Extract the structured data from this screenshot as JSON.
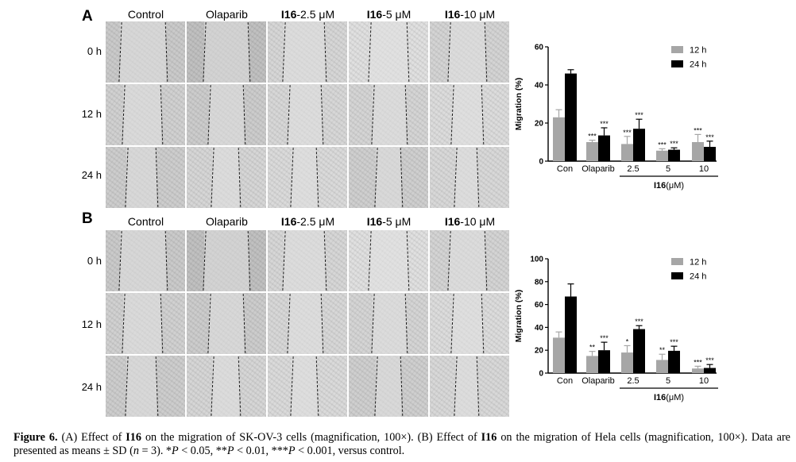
{
  "figure": {
    "panels": [
      {
        "letter": "A",
        "columns": [
          {
            "bold": "",
            "rest": "Control"
          },
          {
            "bold": "",
            "rest": "Olaparib"
          },
          {
            "bold": "I16",
            "rest": "-2.5 μM"
          },
          {
            "bold": "I16",
            "rest": "-5 μM"
          },
          {
            "bold": "I16",
            "rest": "-10 μM"
          }
        ],
        "rows": [
          "0 h",
          "12 h",
          "24 h"
        ]
      },
      {
        "letter": "B",
        "columns": [
          {
            "bold": "",
            "rest": "Control"
          },
          {
            "bold": "",
            "rest": "Olaparib"
          },
          {
            "bold": "I16",
            "rest": "-2.5 μM"
          },
          {
            "bold": "I16",
            "rest": "-5 μM"
          },
          {
            "bold": "I16",
            "rest": "-10 μM"
          }
        ],
        "rows": [
          "0 h",
          "12 h",
          "24 h"
        ]
      }
    ]
  },
  "chart_data": [
    {
      "type": "bar",
      "ylabel": "Migration (%)",
      "ylim": [
        0,
        60
      ],
      "yticks": [
        0,
        20,
        40,
        60
      ],
      "categories": [
        "Con",
        "Olaparib",
        "2.5",
        "5",
        "10"
      ],
      "group_label_bold": "I16",
      "group_label_rest": "(μM)",
      "legend_position": "top-right",
      "series": [
        {
          "name": "12 h",
          "color": "#a6a6a6",
          "values": [
            23,
            10,
            9,
            5.5,
            10
          ],
          "errors": [
            4,
            1,
            4,
            1,
            4
          ],
          "sig": [
            "",
            "***",
            "***",
            "***",
            "***"
          ]
        },
        {
          "name": "24 h",
          "color": "#000000",
          "values": [
            46,
            13.5,
            17,
            6,
            7.5
          ],
          "errors": [
            2,
            4,
            5,
            1,
            3
          ],
          "sig": [
            "",
            "***",
            "***",
            "***",
            "***"
          ]
        }
      ]
    },
    {
      "type": "bar",
      "ylabel": "Migration (%)",
      "ylim": [
        0,
        100
      ],
      "yticks": [
        0,
        20,
        40,
        60,
        80,
        100
      ],
      "categories": [
        "Con",
        "Olaparib",
        "2.5",
        "5",
        "10"
      ],
      "group_label_bold": "I16",
      "group_label_rest": "(μM)",
      "legend_position": "top-right",
      "series": [
        {
          "name": "12 h",
          "color": "#a6a6a6",
          "values": [
            31,
            15,
            18,
            11.5,
            4
          ],
          "errors": [
            5,
            4,
            6,
            5,
            2
          ],
          "sig": [
            "",
            "**",
            "*",
            "**",
            "***"
          ]
        },
        {
          "name": "24 h",
          "color": "#000000",
          "values": [
            67,
            20,
            38.5,
            19.5,
            4.5
          ],
          "errors": [
            11,
            7,
            3,
            4,
            3
          ],
          "sig": [
            "",
            "***",
            "***",
            "***",
            "***"
          ]
        }
      ]
    }
  ],
  "caption": {
    "label": "Figure 6.",
    "t1": " (A) Effect of ",
    "b1": "I16",
    "t2": " on the migration of SK-OV-3 cells (magnification, 100×). (B) Effect of ",
    "b2": "I16",
    "t3": " on the migration of Hela cells (magnification, 100×). Data are presented as means ± SD (",
    "n_italic": "n",
    "t4": " = 3). *",
    "p1": "P",
    "t5": " < 0.05, **",
    "p2": "P",
    "t6": " < 0.01, ***",
    "p3": "P",
    "t7": " < 0.001, versus control."
  }
}
